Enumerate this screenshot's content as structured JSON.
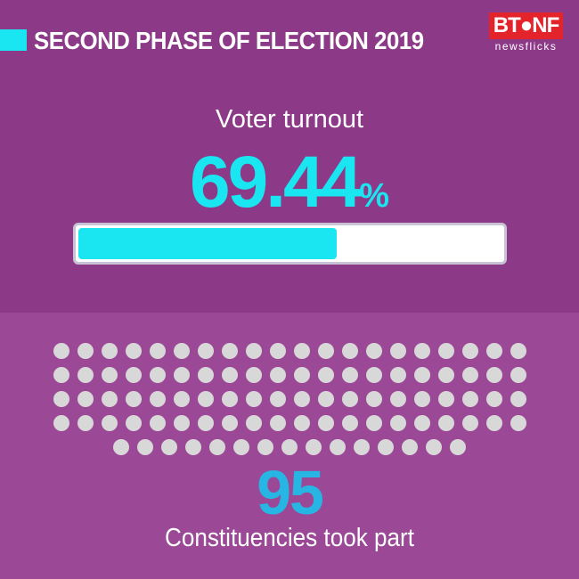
{
  "header": {
    "title": "SECOND PHASE OF ELECTION 2019",
    "accent_color": "#19e6f0"
  },
  "logo": {
    "mark": "BT●NF",
    "subtitle": "newsflicks",
    "color": "#e3242b"
  },
  "turnout": {
    "label": "Voter turnout",
    "value": "69.44",
    "unit": "%",
    "bar_fraction": 0.6944
  },
  "constituencies": {
    "count": "95",
    "label": "Constituencies took part",
    "dot_count": 95,
    "dot_rows": [
      20,
      20,
      20,
      20,
      15
    ]
  },
  "colors": {
    "top_bg": "#8c3a88",
    "bottom_bg": "#9b4897",
    "cyan": "#19e6f0",
    "count_blue": "#27b6e3",
    "dot": "#d8d8d8"
  }
}
